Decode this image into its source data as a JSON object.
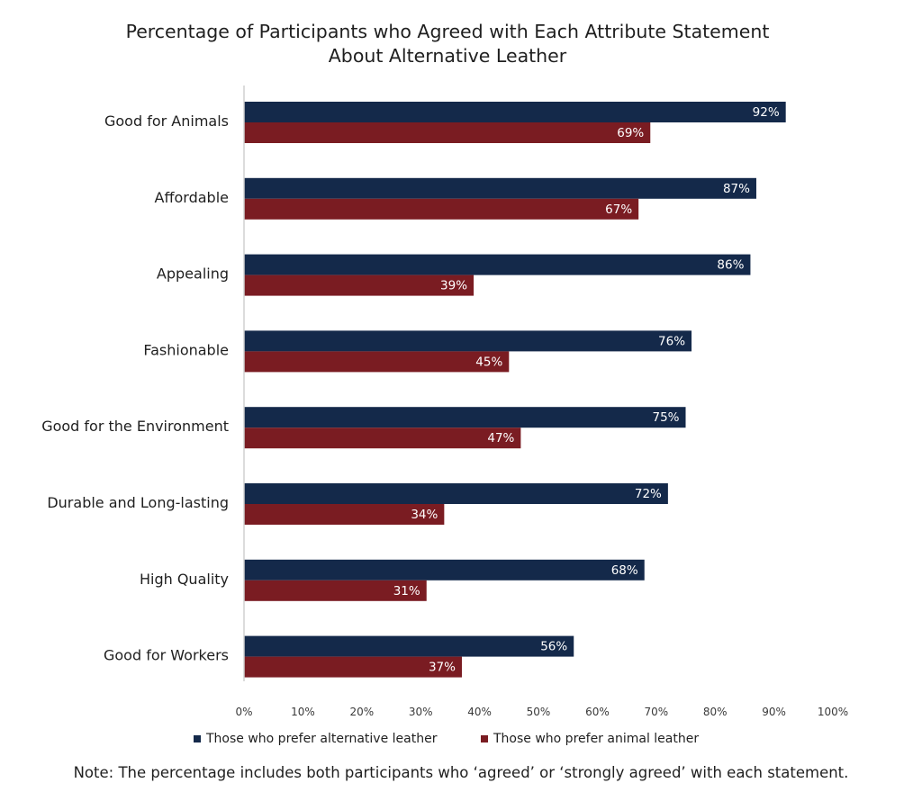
{
  "chart_data": {
    "type": "bar",
    "orientation": "horizontal",
    "title_lines": [
      "Percentage of Participants who Agreed with Each Attribute Statement",
      "About Alternative Leather"
    ],
    "categories": [
      "Good for Animals",
      "Affordable",
      "Appealing",
      "Fashionable",
      "Good for the Environment",
      "Durable and Long-lasting",
      "High Quality",
      "Good for Workers"
    ],
    "series": [
      {
        "name": "Those who prefer alternative leather",
        "color": "#14294a",
        "values": [
          92,
          87,
          86,
          76,
          75,
          72,
          68,
          56
        ],
        "labels": [
          "92%",
          "87%",
          "86%",
          "76%",
          "75%",
          "72%",
          "68%",
          "56%"
        ]
      },
      {
        "name": "Those who prefer animal leather",
        "color": "#7a1c22",
        "values": [
          69,
          67,
          39,
          45,
          47,
          34,
          31,
          37
        ],
        "labels": [
          "69%",
          "67%",
          "39%",
          "45%",
          "47%",
          "34%",
          "31%",
          "37%"
        ]
      }
    ],
    "xlim": [
      0,
      100
    ],
    "x_ticks": [
      0,
      10,
      20,
      30,
      40,
      50,
      60,
      70,
      80,
      90,
      100
    ],
    "x_tick_labels": [
      "0%",
      "10%",
      "20%",
      "30%",
      "40%",
      "50%",
      "60%",
      "70%",
      "80%",
      "90%",
      "100%"
    ],
    "grid": false,
    "legend_position": "bottom"
  },
  "note": "Note: The percentage includes both participants who ‘agreed’ or ‘strongly agreed’ with each statement."
}
